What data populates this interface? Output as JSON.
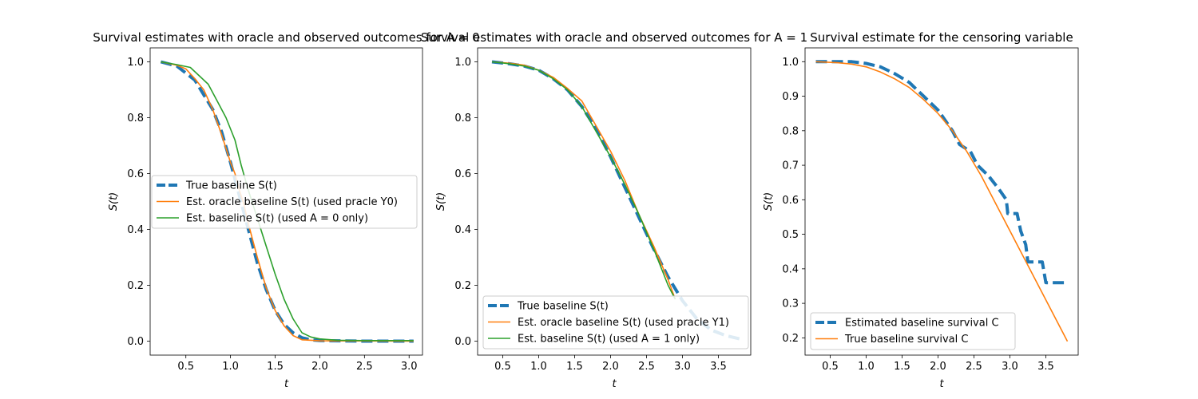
{
  "chart_data": [
    {
      "type": "line",
      "title": "Survival estimates with oracle and observed outcomes for A = 0",
      "xlabel": "t",
      "ylabel": "S(t)",
      "xlim": [
        0.1,
        3.15
      ],
      "ylim": [
        -0.05,
        1.05
      ],
      "xticks": [
        0.5,
        1.0,
        1.5,
        2.0,
        2.5,
        3.0
      ],
      "yticks": [
        0.0,
        0.2,
        0.4,
        0.6,
        0.8,
        1.0
      ],
      "xtick_labels": [
        "0.5",
        "1.0",
        "1.5",
        "2.0",
        "2.5",
        "3.0"
      ],
      "ytick_labels": [
        "0.0",
        "0.2",
        "0.4",
        "0.6",
        "0.8",
        "1.0"
      ],
      "grid": false,
      "legend": "center-left",
      "series": [
        {
          "name": "True baseline S(t)",
          "color": "#1f77b4",
          "style": "dashed-thick",
          "points": [
            [
              0.22,
              1.0
            ],
            [
              0.4,
              0.985
            ],
            [
              0.6,
              0.935
            ],
            [
              0.8,
              0.83
            ],
            [
              0.9,
              0.75
            ],
            [
              1.0,
              0.64
            ],
            [
              1.1,
              0.52
            ],
            [
              1.2,
              0.4
            ],
            [
              1.3,
              0.28
            ],
            [
              1.4,
              0.185
            ],
            [
              1.5,
              0.11
            ],
            [
              1.6,
              0.06
            ],
            [
              1.7,
              0.03
            ],
            [
              1.8,
              0.012
            ],
            [
              1.9,
              0.005
            ],
            [
              2.0,
              0.002
            ],
            [
              2.5,
              0.0
            ],
            [
              3.05,
              0.0
            ]
          ]
        },
        {
          "name": "Est. oracle baseline S(t) (used pracle Y0)",
          "color": "#ff7f0e",
          "style": "solid",
          "points": [
            [
              0.22,
              1.0
            ],
            [
              0.4,
              0.988
            ],
            [
              0.5,
              0.975
            ],
            [
              0.6,
              0.94
            ],
            [
              0.7,
              0.9
            ],
            [
              0.8,
              0.83
            ],
            [
              0.9,
              0.74
            ],
            [
              1.0,
              0.64
            ],
            [
              1.05,
              0.6
            ],
            [
              1.1,
              0.54
            ],
            [
              1.15,
              0.49
            ],
            [
              1.2,
              0.42
            ],
            [
              1.3,
              0.3
            ],
            [
              1.4,
              0.19
            ],
            [
              1.5,
              0.11
            ],
            [
              1.6,
              0.055
            ],
            [
              1.7,
              0.02
            ],
            [
              1.8,
              0.005
            ],
            [
              2.0,
              0.001
            ],
            [
              3.05,
              0.0
            ]
          ]
        },
        {
          "name": "Est. baseline S(t) (used A = 0 only)",
          "color": "#2ca02c",
          "style": "solid",
          "points": [
            [
              0.22,
              1.0
            ],
            [
              0.4,
              0.99
            ],
            [
              0.55,
              0.98
            ],
            [
              0.65,
              0.95
            ],
            [
              0.75,
              0.92
            ],
            [
              0.85,
              0.86
            ],
            [
              0.95,
              0.8
            ],
            [
              1.05,
              0.72
            ],
            [
              1.12,
              0.63
            ],
            [
              1.2,
              0.54
            ],
            [
              1.3,
              0.44
            ],
            [
              1.4,
              0.34
            ],
            [
              1.5,
              0.24
            ],
            [
              1.6,
              0.15
            ],
            [
              1.7,
              0.08
            ],
            [
              1.8,
              0.03
            ],
            [
              1.9,
              0.015
            ],
            [
              2.0,
              0.008
            ],
            [
              2.2,
              0.003
            ],
            [
              2.5,
              0.002
            ],
            [
              3.05,
              0.002
            ]
          ]
        }
      ]
    },
    {
      "type": "line",
      "title": "Survival estimates with oracle and observed outcomes for A = 1",
      "xlabel": "t",
      "ylabel": "S(t)",
      "xlim": [
        0.15,
        3.95
      ],
      "ylim": [
        -0.05,
        1.05
      ],
      "xticks": [
        0.5,
        1.0,
        1.5,
        2.0,
        2.5,
        3.0,
        3.5
      ],
      "yticks": [
        0.0,
        0.2,
        0.4,
        0.6,
        0.8,
        1.0
      ],
      "xtick_labels": [
        "0.5",
        "1.0",
        "1.5",
        "2.0",
        "2.5",
        "3.0",
        "3.5"
      ],
      "ytick_labels": [
        "0.0",
        "0.2",
        "0.4",
        "0.6",
        "0.8",
        "1.0"
      ],
      "grid": false,
      "legend": "bottom-left",
      "series": [
        {
          "name": "True baseline S(t)",
          "color": "#1f77b4",
          "style": "dashed-thick",
          "points": [
            [
              0.35,
              1.0
            ],
            [
              0.6,
              0.993
            ],
            [
              0.8,
              0.985
            ],
            [
              1.0,
              0.97
            ],
            [
              1.2,
              0.94
            ],
            [
              1.4,
              0.9
            ],
            [
              1.6,
              0.84
            ],
            [
              1.8,
              0.76
            ],
            [
              2.0,
              0.66
            ],
            [
              2.2,
              0.55
            ],
            [
              2.4,
              0.44
            ],
            [
              2.6,
              0.33
            ],
            [
              2.8,
              0.23
            ],
            [
              3.0,
              0.145
            ],
            [
              3.2,
              0.08
            ],
            [
              3.4,
              0.04
            ],
            [
              3.6,
              0.02
            ],
            [
              3.8,
              0.008
            ]
          ]
        },
        {
          "name": "Est. oracle baseline S(t) (used pracle Y1)",
          "color": "#ff7f0e",
          "style": "solid",
          "points": [
            [
              0.35,
              1.0
            ],
            [
              0.6,
              0.995
            ],
            [
              0.8,
              0.988
            ],
            [
              1.0,
              0.97
            ],
            [
              1.2,
              0.945
            ],
            [
              1.4,
              0.905
            ],
            [
              1.6,
              0.86
            ],
            [
              1.8,
              0.77
            ],
            [
              2.0,
              0.68
            ],
            [
              2.2,
              0.575
            ],
            [
              2.4,
              0.45
            ],
            [
              2.6,
              0.34
            ],
            [
              2.8,
              0.22
            ],
            [
              2.9,
              0.15
            ]
          ]
        },
        {
          "name": "Est. baseline S(t) (used A = 1 only)",
          "color": "#2ca02c",
          "style": "solid",
          "points": [
            [
              0.35,
              1.0
            ],
            [
              0.6,
              0.993
            ],
            [
              0.8,
              0.985
            ],
            [
              1.0,
              0.97
            ],
            [
              1.2,
              0.94
            ],
            [
              1.4,
              0.9
            ],
            [
              1.6,
              0.84
            ],
            [
              1.8,
              0.75
            ],
            [
              2.0,
              0.66
            ],
            [
              2.2,
              0.56
            ],
            [
              2.4,
              0.45
            ],
            [
              2.6,
              0.33
            ],
            [
              2.8,
              0.2
            ],
            [
              2.9,
              0.15
            ]
          ]
        }
      ]
    },
    {
      "type": "line",
      "title": "Survival estimate for the censoring variable",
      "xlabel": "t",
      "ylabel": "S(t)",
      "xlim": [
        0.15,
        3.95
      ],
      "ylim": [
        0.15,
        1.04
      ],
      "xticks": [
        0.5,
        1.0,
        1.5,
        2.0,
        2.5,
        3.0,
        3.5
      ],
      "yticks": [
        0.2,
        0.3,
        0.4,
        0.5,
        0.6,
        0.7,
        0.8,
        0.9,
        1.0
      ],
      "xtick_labels": [
        "0.5",
        "1.0",
        "1.5",
        "2.0",
        "2.5",
        "3.0",
        "3.5"
      ],
      "ytick_labels": [
        "0.2",
        "0.3",
        "0.4",
        "0.5",
        "0.6",
        "0.7",
        "0.8",
        "0.9",
        "1.0"
      ],
      "grid": false,
      "legend": "bottom-left",
      "series": [
        {
          "name": "Estimated baseline survival C",
          "color": "#1f77b4",
          "style": "dashed-thick",
          "points": [
            [
              0.3,
              1.0
            ],
            [
              0.8,
              1.0
            ],
            [
              1.0,
              0.995
            ],
            [
              1.2,
              0.985
            ],
            [
              1.4,
              0.965
            ],
            [
              1.6,
              0.94
            ],
            [
              1.8,
              0.9
            ],
            [
              2.0,
              0.86
            ],
            [
              2.2,
              0.8
            ],
            [
              2.3,
              0.76
            ],
            [
              2.45,
              0.74
            ],
            [
              2.55,
              0.7
            ],
            [
              2.7,
              0.67
            ],
            [
              2.85,
              0.63
            ],
            [
              2.95,
              0.6
            ],
            [
              2.97,
              0.56
            ],
            [
              3.1,
              0.56
            ],
            [
              3.15,
              0.51
            ],
            [
              3.22,
              0.47
            ],
            [
              3.25,
              0.42
            ],
            [
              3.45,
              0.42
            ],
            [
              3.5,
              0.36
            ],
            [
              3.8,
              0.36
            ]
          ]
        },
        {
          "name": "True baseline survival C",
          "color": "#ff7f0e",
          "style": "solid",
          "points": [
            [
              0.3,
              1.0
            ],
            [
              0.6,
              0.997
            ],
            [
              0.8,
              0.993
            ],
            [
              1.0,
              0.985
            ],
            [
              1.2,
              0.97
            ],
            [
              1.4,
              0.95
            ],
            [
              1.6,
              0.925
            ],
            [
              1.8,
              0.89
            ],
            [
              2.0,
              0.85
            ],
            [
              2.2,
              0.8
            ],
            [
              2.4,
              0.74
            ],
            [
              2.6,
              0.67
            ],
            [
              2.8,
              0.59
            ],
            [
              3.0,
              0.51
            ],
            [
              3.2,
              0.43
            ],
            [
              3.4,
              0.35
            ],
            [
              3.6,
              0.27
            ],
            [
              3.8,
              0.19
            ]
          ]
        }
      ]
    }
  ]
}
